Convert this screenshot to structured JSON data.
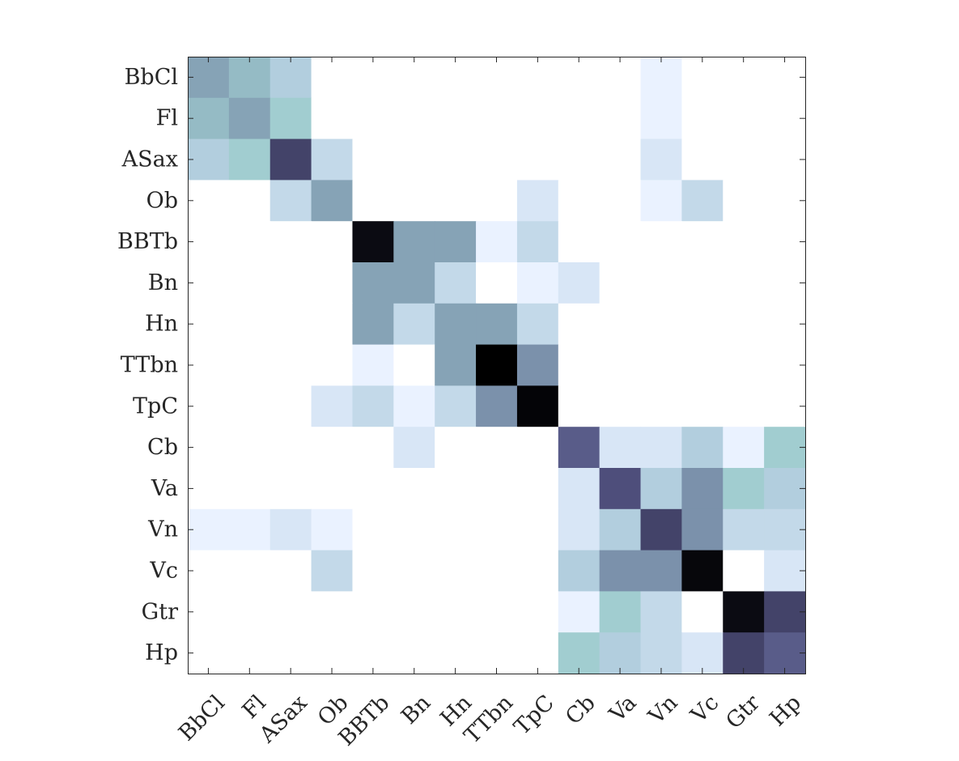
{
  "chart_data": {
    "type": "heatmap",
    "title": "",
    "xlabel": "",
    "ylabel": "",
    "row_labels": [
      "BbCl",
      "Fl",
      "ASax",
      "Ob",
      "BBTb",
      "Bn",
      "Hn",
      "TTbn",
      "TpC",
      "Cb",
      "Va",
      "Vn",
      "Vc",
      "Gtr",
      "Hp"
    ],
    "col_labels": [
      "BbCl",
      "Fl",
      "ASax",
      "Ob",
      "BBTb",
      "Bn",
      "Hn",
      "TTbn",
      "TpC",
      "Cb",
      "Va",
      "Vn",
      "Vc",
      "Gtr",
      "Hp"
    ],
    "value_range": [
      0,
      1
    ],
    "colormap": "bone (reversed): white = low, black = high",
    "values": [
      [
        0.4,
        0.33,
        0.22,
        0,
        0,
        0,
        0,
        0,
        0,
        0,
        0,
        0.06,
        0,
        0,
        0
      ],
      [
        0.33,
        0.4,
        0.28,
        0,
        0,
        0,
        0,
        0,
        0,
        0,
        0,
        0.06,
        0,
        0,
        0
      ],
      [
        0.22,
        0.28,
        0.7,
        0.17,
        0,
        0,
        0,
        0,
        0,
        0,
        0,
        0.11,
        0,
        0,
        0
      ],
      [
        0,
        0,
        0.17,
        0.4,
        0,
        0,
        0,
        0,
        0.11,
        0,
        0,
        0.06,
        0.17,
        0,
        0
      ],
      [
        0,
        0,
        0,
        0,
        0.95,
        0.4,
        0.4,
        0.06,
        0.17,
        0,
        0,
        0,
        0,
        0,
        0
      ],
      [
        0,
        0,
        0,
        0,
        0.4,
        0.4,
        0.17,
        0,
        0.06,
        0.11,
        0,
        0,
        0,
        0,
        0
      ],
      [
        0,
        0,
        0,
        0,
        0.4,
        0.17,
        0.4,
        0.4,
        0.17,
        0,
        0,
        0,
        0,
        0,
        0
      ],
      [
        0,
        0,
        0,
        0,
        0.06,
        0,
        0.4,
        1.0,
        0.45,
        0,
        0,
        0,
        0,
        0,
        0
      ],
      [
        0,
        0,
        0,
        0.11,
        0.17,
        0.06,
        0.17,
        0.45,
        0.98,
        0,
        0,
        0,
        0,
        0,
        0
      ],
      [
        0,
        0,
        0,
        0,
        0,
        0.11,
        0,
        0,
        0,
        0.6,
        0.11,
        0.11,
        0.22,
        0.06,
        0.28
      ],
      [
        0,
        0,
        0,
        0,
        0,
        0,
        0,
        0,
        0,
        0.11,
        0.65,
        0.22,
        0.45,
        0.28,
        0.22
      ],
      [
        0.06,
        0.06,
        0.11,
        0.06,
        0,
        0,
        0,
        0,
        0,
        0.11,
        0.22,
        0.7,
        0.45,
        0.17,
        0.17
      ],
      [
        0,
        0,
        0,
        0.17,
        0,
        0,
        0,
        0,
        0,
        0.22,
        0.45,
        0.45,
        0.97,
        0,
        0.11
      ],
      [
        0,
        0,
        0,
        0,
        0,
        0,
        0,
        0,
        0,
        0.06,
        0.28,
        0.17,
        0,
        0.95,
        0.7
      ],
      [
        0,
        0,
        0,
        0,
        0,
        0,
        0,
        0,
        0,
        0.28,
        0.22,
        0.17,
        0.11,
        0.7,
        0.6
      ]
    ],
    "grid": false,
    "legend": "none"
  }
}
